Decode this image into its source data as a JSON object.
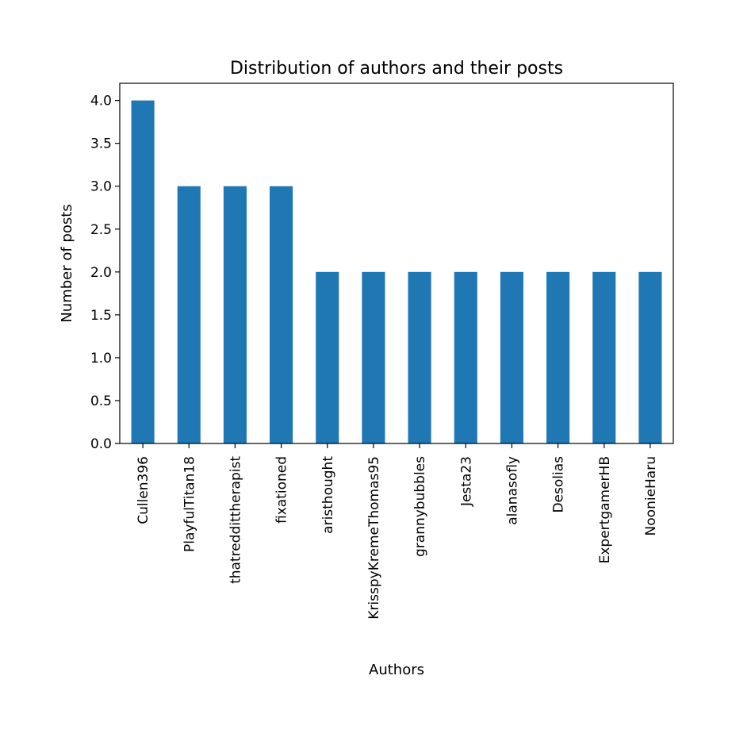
{
  "chart_data": {
    "type": "bar",
    "title": "Distribution of authors and their posts",
    "xlabel": "Authors",
    "ylabel": "Number of posts",
    "categories": [
      "Cullen396",
      "PlayfulTitan18",
      "thatreddittherapist",
      "fixationed",
      "aristhought",
      "KrisspyKremeThomas95",
      "grannybubbles",
      "Jesta23",
      "alanasofly",
      "Desolias",
      "ExpertgamerHB",
      "NoonieHaru"
    ],
    "values": [
      4,
      3,
      3,
      3,
      2,
      2,
      2,
      2,
      2,
      2,
      2,
      2
    ],
    "ylim": [
      0,
      4.2
    ],
    "yticks": [
      "0.0",
      "0.5",
      "1.0",
      "1.5",
      "2.0",
      "2.5",
      "3.0",
      "3.5",
      "4.0"
    ],
    "grid": false,
    "bar_color": "#1f77b4"
  }
}
